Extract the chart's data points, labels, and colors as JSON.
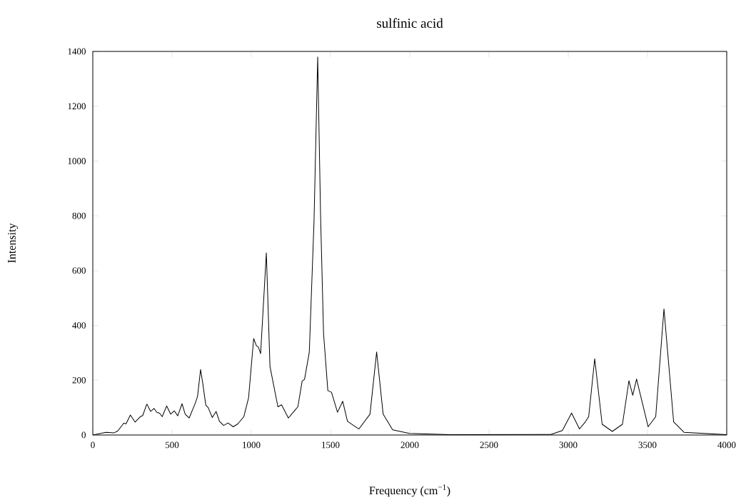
{
  "chart_data": {
    "type": "line",
    "title": "sulfinic acid",
    "xlabel": "Frequency (cm$^{−1}$)",
    "ylabel": "Intensity",
    "xlim": [
      0,
      4000
    ],
    "ylim": [
      0,
      1400
    ],
    "xticks": [
      0,
      500,
      1000,
      1500,
      2000,
      2500,
      3000,
      3500,
      4000
    ],
    "yticks": [
      0,
      200,
      400,
      600,
      800,
      1000,
      1200,
      1400
    ],
    "marker": "none",
    "line_style": "solid",
    "series": [
      {
        "color": "#000000",
        "x": [
          0,
          83,
          135,
          158,
          195,
          210,
          237,
          267,
          300,
          315,
          341,
          365,
          386,
          405,
          420,
          438,
          466,
          491,
          514,
          536,
          563,
          583,
          608,
          646,
          661,
          680,
          694,
          713,
          728,
          754,
          778,
          799,
          826,
          853,
          886,
          916,
          953,
          983,
          1015,
          1033,
          1045,
          1059,
          1095,
          1118,
          1168,
          1191,
          1234,
          1276,
          1294,
          1321,
          1336,
          1366,
          1396,
          1419,
          1437,
          1456,
          1483,
          1506,
          1544,
          1577,
          1607,
          1679,
          1749,
          1791,
          1832,
          1892,
          1997,
          2252,
          2890,
          2963,
          3021,
          3071,
          3108,
          3129,
          3167,
          3214,
          3278,
          3342,
          3383,
          3407,
          3431,
          3504,
          3552,
          3604,
          3665,
          3730,
          4000
        ],
        "values": [
          0,
          10,
          8,
          15,
          43,
          41,
          73,
          47,
          67,
          71,
          113,
          86,
          97,
          82,
          80,
          67,
          106,
          76,
          88,
          70,
          114,
          76,
          62,
          115,
          141,
          239,
          188,
          109,
          100,
          64,
          86,
          50,
          35,
          44,
          30,
          41,
          67,
          136,
          352,
          325,
          321,
          297,
          665,
          250,
          103,
          110,
          62,
          91,
          103,
          197,
          203,
          302,
          782,
          1380,
          806,
          371,
          162,
          156,
          83,
          123,
          50,
          22,
          76,
          303,
          76,
          19,
          6,
          1,
          2,
          16,
          80,
          22,
          48,
          67,
          278,
          39,
          13,
          39,
          198,
          145,
          204,
          30,
          67,
          460,
          48,
          10,
          1
        ]
      }
    ]
  }
}
